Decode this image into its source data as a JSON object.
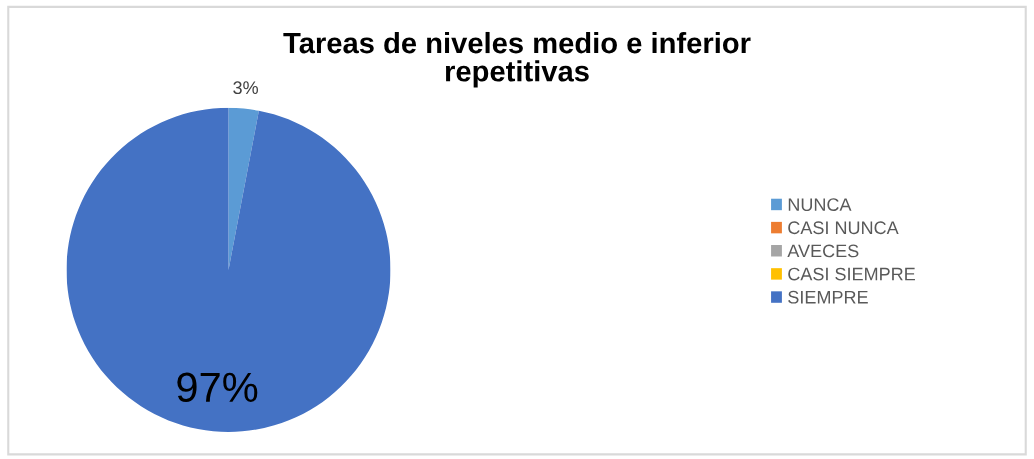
{
  "chart_data": {
    "type": "pie",
    "title": "Tareas de niveles medio e inferior repetitivas",
    "categories": [
      "NUNCA",
      "CASI NUNCA",
      "AVECES",
      "CASI SIEMPRE",
      "SIEMPRE"
    ],
    "values": [
      3,
      0,
      0,
      0,
      97
    ],
    "colors": [
      "#5b9bd5",
      "#ed7d31",
      "#a5a5a5",
      "#ffc000",
      "#4472c4"
    ],
    "value_labels": [
      "3%",
      null,
      null,
      null,
      "97%"
    ],
    "legend": "right"
  }
}
